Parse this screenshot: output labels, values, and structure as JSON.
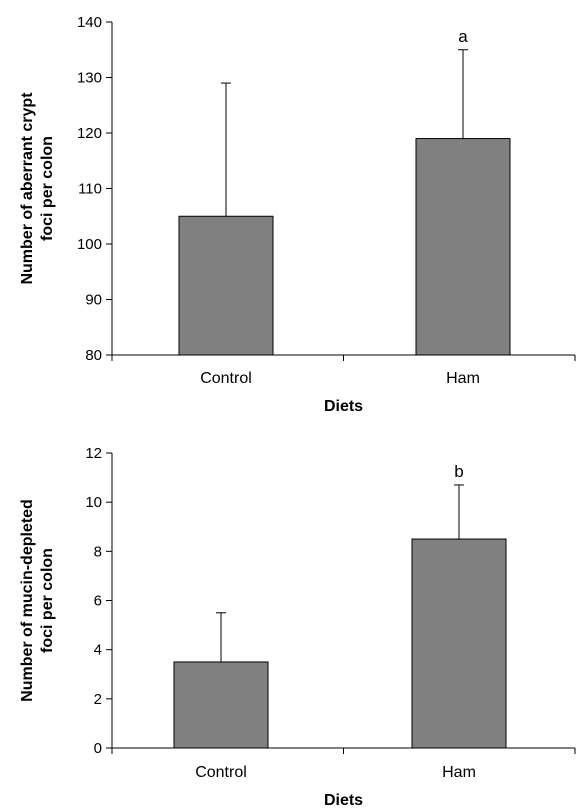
{
  "chart_data": [
    {
      "type": "bar",
      "categories": [
        "Control",
        "Ham"
      ],
      "values": [
        105,
        119
      ],
      "errors": [
        24,
        16
      ],
      "annotations": [
        "",
        "a"
      ],
      "xlabel": "Diets",
      "ylabel_lines": [
        "Number of aberrant crypt",
        "foci per colon"
      ],
      "ylim": [
        80,
        140
      ],
      "yticks": [
        80,
        90,
        100,
        110,
        120,
        130,
        140
      ],
      "bar_color": "#808080",
      "grid": false,
      "legend": "none"
    },
    {
      "type": "bar",
      "categories": [
        "Control",
        "Ham"
      ],
      "values": [
        3.5,
        8.5
      ],
      "errors": [
        2.0,
        2.2
      ],
      "annotations": [
        "",
        "b"
      ],
      "xlabel": "Diets",
      "ylabel_lines": [
        "Number of mucin-depleted",
        "foci  per colon"
      ],
      "ylim": [
        0,
        12
      ],
      "yticks": [
        0,
        2,
        4,
        6,
        8,
        10,
        12
      ],
      "bar_color": "#808080",
      "grid": false,
      "legend": "none"
    }
  ]
}
